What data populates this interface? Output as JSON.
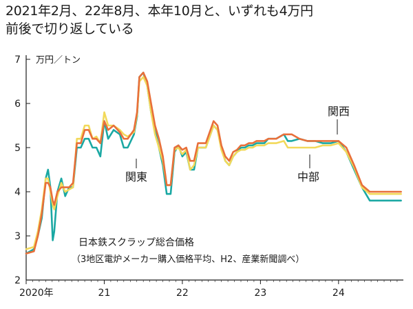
{
  "header": {
    "title_line1": "2021年2月、22年8月、本年10月と、いずれも4万円",
    "title_line2": "前後で切り返している"
  },
  "chart_data": {
    "type": "line",
    "unit_label": "万円／トン",
    "ylim": [
      2,
      7
    ],
    "y_ticks": [
      "2",
      "3",
      "4",
      "5",
      "6",
      "7"
    ],
    "x_range": [
      2020.0,
      2024.83
    ],
    "x_ticks": [
      {
        "x": 2020.0,
        "label": "2020年"
      },
      {
        "x": 2021.0,
        "label": "21"
      },
      {
        "x": 2022.0,
        "label": "22"
      },
      {
        "x": 2023.0,
        "label": "23"
      },
      {
        "x": 2024.0,
        "label": "24"
      }
    ],
    "grid": false,
    "note_line1": "日本鉄スクラップ総合価格",
    "note_line2": "（3地区電炉メーカー購入価格平均、H2、産業新聞調べ）",
    "colors": {
      "kanto": "#1aa8a3",
      "kansai": "#e86f3a",
      "chubu": "#f2d95a"
    },
    "series": [
      {
        "name": "関東",
        "key": "kanto",
        "x": [
          2020.0,
          2020.1,
          2020.15,
          2020.2,
          2020.25,
          2020.28,
          2020.31,
          2020.34,
          2020.36,
          2020.4,
          2020.45,
          2020.5,
          2020.55,
          2020.6,
          2020.65,
          2020.7,
          2020.75,
          2020.8,
          2020.85,
          2020.9,
          2020.95,
          2021.0,
          2021.05,
          2021.12,
          2021.2,
          2021.25,
          2021.3,
          2021.38,
          2021.42,
          2021.45,
          2021.5,
          2021.55,
          2021.6,
          2021.65,
          2021.7,
          2021.75,
          2021.8,
          2021.85,
          2021.9,
          2021.95,
          2022.0,
          2022.05,
          2022.1,
          2022.15,
          2022.2,
          2022.3,
          2022.4,
          2022.45,
          2022.5,
          2022.55,
          2022.6,
          2022.65,
          2022.7,
          2022.75,
          2022.8,
          2022.85,
          2022.9,
          2022.95,
          2023.0,
          2023.05,
          2023.1,
          2023.2,
          2023.3,
          2023.35,
          2023.4,
          2023.5,
          2023.6,
          2023.7,
          2023.8,
          2023.9,
          2024.0,
          2024.1,
          2024.2,
          2024.3,
          2024.4,
          2024.5,
          2024.6,
          2024.65,
          2024.7,
          2024.75,
          2024.8
        ],
        "values": [
          2.6,
          2.7,
          3.0,
          3.4,
          4.3,
          4.5,
          4.1,
          2.9,
          3.1,
          4.0,
          4.3,
          3.9,
          4.1,
          4.1,
          5.0,
          5.0,
          5.2,
          5.2,
          5.0,
          5.0,
          4.8,
          5.6,
          5.2,
          5.4,
          5.3,
          5.0,
          5.0,
          5.3,
          5.7,
          6.6,
          6.7,
          6.4,
          5.8,
          5.4,
          5.0,
          4.6,
          3.95,
          3.95,
          4.9,
          5.05,
          4.8,
          4.9,
          4.5,
          4.5,
          5.0,
          5.0,
          5.5,
          5.4,
          5.0,
          4.7,
          4.6,
          4.8,
          4.9,
          5.0,
          5.0,
          5.05,
          5.05,
          5.1,
          5.1,
          5.1,
          5.2,
          5.2,
          5.3,
          5.15,
          5.15,
          5.2,
          5.15,
          5.15,
          5.1,
          5.1,
          5.15,
          4.9,
          4.5,
          4.1,
          3.8,
          3.8,
          3.8,
          3.8,
          3.8,
          3.8,
          3.8
        ]
      },
      {
        "name": "関西",
        "key": "kansai",
        "x": [
          2020.0,
          2020.1,
          2020.15,
          2020.2,
          2020.25,
          2020.28,
          2020.31,
          2020.34,
          2020.36,
          2020.4,
          2020.45,
          2020.5,
          2020.55,
          2020.6,
          2020.65,
          2020.7,
          2020.75,
          2020.8,
          2020.85,
          2020.9,
          2020.95,
          2021.0,
          2021.05,
          2021.12,
          2021.2,
          2021.25,
          2021.3,
          2021.38,
          2021.42,
          2021.45,
          2021.5,
          2021.55,
          2021.6,
          2021.65,
          2021.7,
          2021.75,
          2021.8,
          2021.85,
          2021.9,
          2021.95,
          2022.0,
          2022.05,
          2022.1,
          2022.15,
          2022.2,
          2022.3,
          2022.4,
          2022.45,
          2022.5,
          2022.55,
          2022.6,
          2022.65,
          2022.7,
          2022.75,
          2022.8,
          2022.85,
          2022.9,
          2022.95,
          2023.0,
          2023.05,
          2023.1,
          2023.2,
          2023.3,
          2023.35,
          2023.4,
          2023.5,
          2023.6,
          2023.7,
          2023.8,
          2023.9,
          2024.0,
          2024.1,
          2024.2,
          2024.3,
          2024.4,
          2024.5,
          2024.6,
          2024.65,
          2024.7,
          2024.75,
          2024.8
        ],
        "values": [
          2.6,
          2.65,
          3.0,
          3.5,
          4.2,
          4.2,
          4.1,
          3.8,
          3.7,
          4.0,
          4.1,
          4.1,
          4.1,
          4.2,
          5.1,
          5.1,
          5.4,
          5.4,
          5.2,
          5.2,
          5.1,
          5.6,
          5.4,
          5.5,
          5.35,
          5.2,
          5.2,
          5.4,
          5.8,
          6.6,
          6.7,
          6.5,
          6.0,
          5.5,
          5.2,
          4.8,
          4.15,
          4.15,
          5.0,
          5.05,
          4.95,
          5.0,
          4.7,
          4.7,
          5.1,
          5.1,
          5.6,
          5.5,
          5.05,
          4.8,
          4.7,
          4.9,
          4.95,
          5.05,
          5.05,
          5.1,
          5.1,
          5.15,
          5.15,
          5.15,
          5.2,
          5.2,
          5.3,
          5.3,
          5.3,
          5.2,
          5.15,
          5.15,
          5.15,
          5.15,
          5.15,
          5.0,
          4.6,
          4.15,
          4.0,
          4.0,
          4.0,
          4.0,
          4.0,
          4.0,
          4.0
        ]
      },
      {
        "name": "中部",
        "key": "chubu",
        "x": [
          2020.0,
          2020.1,
          2020.15,
          2020.2,
          2020.25,
          2020.28,
          2020.31,
          2020.34,
          2020.36,
          2020.4,
          2020.45,
          2020.5,
          2020.55,
          2020.6,
          2020.65,
          2020.7,
          2020.75,
          2020.8,
          2020.85,
          2020.9,
          2020.95,
          2021.0,
          2021.05,
          2021.12,
          2021.2,
          2021.25,
          2021.3,
          2021.38,
          2021.42,
          2021.45,
          2021.5,
          2021.55,
          2021.6,
          2021.65,
          2021.7,
          2021.75,
          2021.8,
          2021.85,
          2021.9,
          2021.95,
          2022.0,
          2022.05,
          2022.1,
          2022.15,
          2022.2,
          2022.3,
          2022.4,
          2022.45,
          2022.5,
          2022.55,
          2022.6,
          2022.65,
          2022.7,
          2022.75,
          2022.8,
          2022.85,
          2022.9,
          2022.95,
          2023.0,
          2023.05,
          2023.1,
          2023.2,
          2023.3,
          2023.35,
          2023.4,
          2023.5,
          2023.6,
          2023.7,
          2023.8,
          2023.9,
          2024.0,
          2024.1,
          2024.2,
          2024.3,
          2024.4,
          2024.5,
          2024.6,
          2024.65,
          2024.7,
          2024.75,
          2024.8
        ],
        "values": [
          2.7,
          2.75,
          3.1,
          3.6,
          4.3,
          4.3,
          4.0,
          3.7,
          3.6,
          3.9,
          4.2,
          4.0,
          4.05,
          4.1,
          5.2,
          5.2,
          5.5,
          5.5,
          5.2,
          5.25,
          5.1,
          5.8,
          5.5,
          5.5,
          5.4,
          5.3,
          5.25,
          5.35,
          5.75,
          6.5,
          6.6,
          6.4,
          5.8,
          5.3,
          5.0,
          4.7,
          4.15,
          4.15,
          4.95,
          5.0,
          4.85,
          4.95,
          4.5,
          4.6,
          5.0,
          5.0,
          5.5,
          5.4,
          4.95,
          4.7,
          4.6,
          4.8,
          4.9,
          4.95,
          4.95,
          5.0,
          5.0,
          5.05,
          5.05,
          5.05,
          5.1,
          5.1,
          5.15,
          5.0,
          5.0,
          5.0,
          5.0,
          5.0,
          5.05,
          5.05,
          5.1,
          4.9,
          4.55,
          4.1,
          3.95,
          3.95,
          3.95,
          3.95,
          3.95,
          3.95,
          3.95
        ]
      }
    ],
    "annotations": {
      "kanto_label": "関東",
      "kansai_label": "関西",
      "chubu_label": "中部"
    }
  }
}
